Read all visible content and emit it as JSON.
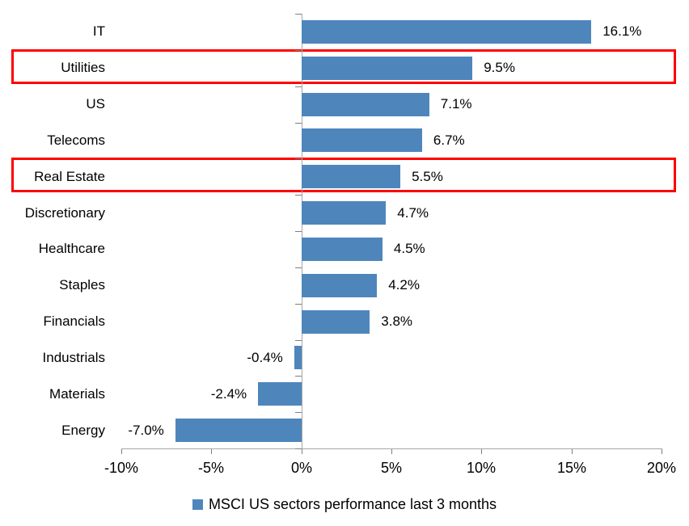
{
  "chart_data": {
    "type": "bar",
    "orientation": "horizontal",
    "title": "",
    "categories": [
      "IT",
      "Utilities",
      "US",
      "Telecoms",
      "Real Estate",
      "Discretionary",
      "Healthcare",
      "Staples",
      "Financials",
      "Industrials",
      "Materials",
      "Energy"
    ],
    "values": [
      16.1,
      9.5,
      7.1,
      6.7,
      5.5,
      4.7,
      4.5,
      4.2,
      3.8,
      -0.4,
      -2.4,
      -7.0
    ],
    "value_labels": [
      "16.1%",
      "9.5%",
      "7.1%",
      "6.7%",
      "5.5%",
      "4.7%",
      "4.5%",
      "4.2%",
      "3.8%",
      "-0.4%",
      "-2.4%",
      "-7.0%"
    ],
    "x_tick_values": [
      -10,
      -5,
      0,
      5,
      10,
      15,
      20
    ],
    "x_tick_labels": [
      "-10%",
      "-5%",
      "0%",
      "5%",
      "10%",
      "15%",
      "20%"
    ],
    "xlim": [
      -10,
      20
    ],
    "grid": "off",
    "legend": "MSCI US sectors performance last 3 months",
    "legend_position": "bottom-center",
    "bar_color": "#4E86BC",
    "axis_color": "#A6A6A6",
    "tick_color": "#7F7F7F",
    "highlight_color": "#FF0000",
    "highlighted_categories": [
      "Utilities",
      "Real Estate"
    ]
  }
}
